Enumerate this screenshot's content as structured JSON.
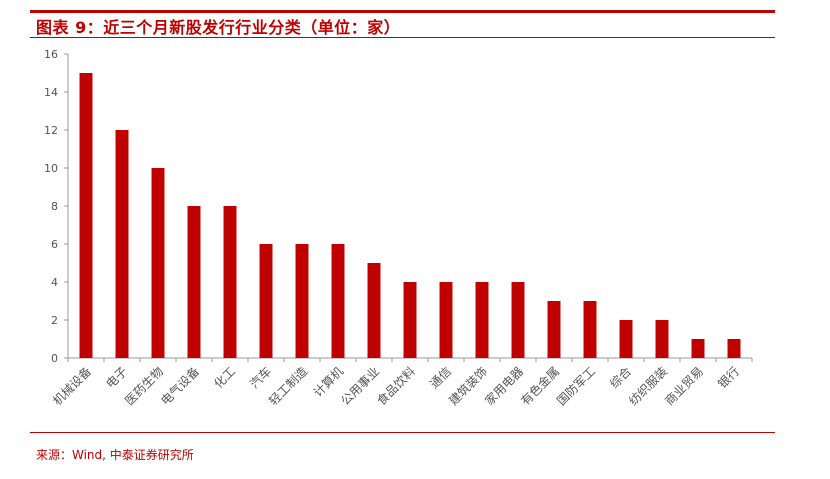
{
  "header": {
    "title": "图表 9：近三个月新股发行行业分类（单位：家）"
  },
  "footer": {
    "source": "来源：Wind, 中泰证券研究所"
  },
  "colors": {
    "accent": "#c00000",
    "bar": "#c00000",
    "axis": "#999999",
    "tick_text": "#555555"
  },
  "chart_data": {
    "type": "bar",
    "title": "图表 9：近三个月新股发行行业分类（单位：家）",
    "xlabel": "",
    "ylabel": "",
    "ylim": [
      0,
      16
    ],
    "yticks": [
      0,
      2,
      4,
      6,
      8,
      10,
      12,
      14,
      16
    ],
    "grid": false,
    "categories": [
      "机械设备",
      "电子",
      "医药生物",
      "电气设备",
      "化工",
      "汽车",
      "轻工制造",
      "计算机",
      "公用事业",
      "食品饮料",
      "通信",
      "建筑装饰",
      "家用电器",
      "有色金属",
      "国防军工",
      "综合",
      "纺织服装",
      "商业贸易",
      "银行"
    ],
    "values": [
      15,
      12,
      10,
      8,
      8,
      6,
      6,
      6,
      5,
      4,
      4,
      4,
      4,
      3,
      3,
      2,
      2,
      1,
      1
    ]
  }
}
